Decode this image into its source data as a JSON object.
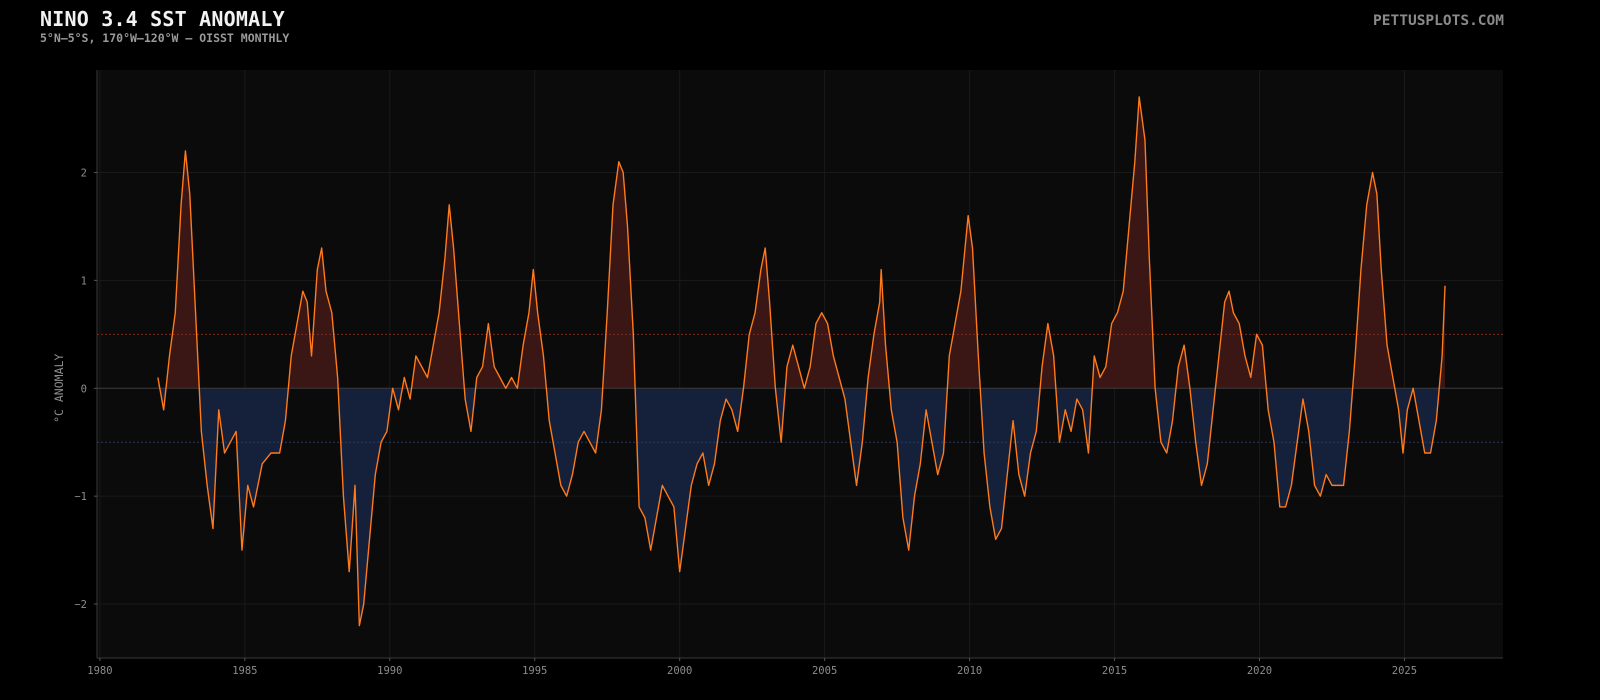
{
  "header": {
    "title": "NINO 3.4 SST ANOMALY",
    "subtitle": "5°N–5°S, 170°W–120°W — OISST MONTHLY",
    "brand": "PETTUSPLOTS.COM"
  },
  "colors": {
    "background": "#000000",
    "plot_background": "#0b0b0b",
    "line": "#ff7a1a",
    "warm_fill": "#3a1614",
    "cool_fill": "#15203a",
    "warm_threshold": "#7a2a22",
    "cool_threshold": "#2a3a60",
    "zero_line": "#3a3a3a",
    "grid": "#1a1a1a"
  },
  "chart_data": {
    "type": "area",
    "title": "NINO 3.4 SST ANOMALY",
    "subtitle": "5°N–5°S, 170°W–120°W — OISST MONTHLY",
    "xlabel": "",
    "ylabel": "°C ANOMALY",
    "xlim": [
      1979.9,
      2028.4
    ],
    "ylim": [
      -2.5,
      2.95
    ],
    "x_ticks": [
      1980,
      1985,
      1990,
      1995,
      2000,
      2005,
      2010,
      2015,
      2020,
      2025
    ],
    "x_tick_labels": [
      "1980",
      "1985",
      "1990",
      "1995",
      "2000",
      "2005",
      "2010",
      "2015",
      "2020",
      "2025"
    ],
    "y_ticks": [
      -2,
      -1,
      0,
      1,
      2
    ],
    "y_tick_labels": [
      "−2",
      "−1",
      "0",
      "1",
      "2"
    ],
    "thresholds": [
      0.5,
      -0.5
    ],
    "grid": true,
    "legend": "none",
    "series": [
      {
        "points": [
          [
            1982.0,
            0.1
          ],
          [
            1982.2,
            -0.2
          ],
          [
            1982.4,
            0.3
          ],
          [
            1982.6,
            0.7
          ],
          [
            1982.8,
            1.7
          ],
          [
            1982.95,
            2.2
          ],
          [
            1983.1,
            1.8
          ],
          [
            1983.3,
            0.7
          ],
          [
            1983.5,
            -0.4
          ],
          [
            1983.7,
            -0.9
          ],
          [
            1983.9,
            -1.3
          ],
          [
            1984.1,
            -0.2
          ],
          [
            1984.3,
            -0.6
          ],
          [
            1984.5,
            -0.5
          ],
          [
            1984.7,
            -0.4
          ],
          [
            1984.9,
            -1.5
          ],
          [
            1985.1,
            -0.9
          ],
          [
            1985.3,
            -1.1
          ],
          [
            1985.6,
            -0.7
          ],
          [
            1985.9,
            -0.6
          ],
          [
            1986.2,
            -0.6
          ],
          [
            1986.4,
            -0.3
          ],
          [
            1986.6,
            0.3
          ],
          [
            1986.8,
            0.6
          ],
          [
            1987.0,
            0.9
          ],
          [
            1987.15,
            0.8
          ],
          [
            1987.3,
            0.3
          ],
          [
            1987.5,
            1.1
          ],
          [
            1987.65,
            1.3
          ],
          [
            1987.8,
            0.9
          ],
          [
            1988.0,
            0.7
          ],
          [
            1988.2,
            0.1
          ],
          [
            1988.4,
            -1.0
          ],
          [
            1988.6,
            -1.7
          ],
          [
            1988.8,
            -0.9
          ],
          [
            1988.95,
            -2.2
          ],
          [
            1989.1,
            -2.0
          ],
          [
            1989.3,
            -1.4
          ],
          [
            1989.5,
            -0.8
          ],
          [
            1989.7,
            -0.5
          ],
          [
            1989.9,
            -0.4
          ],
          [
            1990.1,
            0.0
          ],
          [
            1990.3,
            -0.2
          ],
          [
            1990.5,
            0.1
          ],
          [
            1990.7,
            -0.1
          ],
          [
            1990.9,
            0.3
          ],
          [
            1991.1,
            0.2
          ],
          [
            1991.3,
            0.1
          ],
          [
            1991.5,
            0.4
          ],
          [
            1991.7,
            0.7
          ],
          [
            1991.9,
            1.2
          ],
          [
            1992.05,
            1.7
          ],
          [
            1992.2,
            1.3
          ],
          [
            1992.4,
            0.6
          ],
          [
            1992.6,
            -0.1
          ],
          [
            1992.8,
            -0.4
          ],
          [
            1993.0,
            0.1
          ],
          [
            1993.2,
            0.2
          ],
          [
            1993.4,
            0.6
          ],
          [
            1993.6,
            0.2
          ],
          [
            1993.8,
            0.1
          ],
          [
            1994.0,
            0.0
          ],
          [
            1994.2,
            0.1
          ],
          [
            1994.4,
            0.0
          ],
          [
            1994.6,
            0.4
          ],
          [
            1994.8,
            0.7
          ],
          [
            1994.95,
            1.1
          ],
          [
            1995.1,
            0.7
          ],
          [
            1995.3,
            0.3
          ],
          [
            1995.5,
            -0.3
          ],
          [
            1995.7,
            -0.6
          ],
          [
            1995.9,
            -0.9
          ],
          [
            1996.1,
            -1.0
          ],
          [
            1996.3,
            -0.8
          ],
          [
            1996.5,
            -0.5
          ],
          [
            1996.7,
            -0.4
          ],
          [
            1996.9,
            -0.5
          ],
          [
            1997.1,
            -0.6
          ],
          [
            1997.3,
            -0.2
          ],
          [
            1997.5,
            0.7
          ],
          [
            1997.7,
            1.7
          ],
          [
            1997.9,
            2.1
          ],
          [
            1998.05,
            2.0
          ],
          [
            1998.2,
            1.5
          ],
          [
            1998.4,
            0.5
          ],
          [
            1998.6,
            -1.1
          ],
          [
            1998.8,
            -1.2
          ],
          [
            1999.0,
            -1.5
          ],
          [
            1999.2,
            -1.2
          ],
          [
            1999.4,
            -0.9
          ],
          [
            1999.6,
            -1.0
          ],
          [
            1999.8,
            -1.1
          ],
          [
            2000.0,
            -1.7
          ],
          [
            2000.2,
            -1.3
          ],
          [
            2000.4,
            -0.9
          ],
          [
            2000.6,
            -0.7
          ],
          [
            2000.8,
            -0.6
          ],
          [
            2001.0,
            -0.9
          ],
          [
            2001.2,
            -0.7
          ],
          [
            2001.4,
            -0.3
          ],
          [
            2001.6,
            -0.1
          ],
          [
            2001.8,
            -0.2
          ],
          [
            2002.0,
            -0.4
          ],
          [
            2002.2,
            0.0
          ],
          [
            2002.4,
            0.5
          ],
          [
            2002.6,
            0.7
          ],
          [
            2002.8,
            1.1
          ],
          [
            2002.95,
            1.3
          ],
          [
            2003.1,
            0.8
          ],
          [
            2003.3,
            0.0
          ],
          [
            2003.5,
            -0.5
          ],
          [
            2003.7,
            0.2
          ],
          [
            2003.9,
            0.4
          ],
          [
            2004.1,
            0.2
          ],
          [
            2004.3,
            0.0
          ],
          [
            2004.5,
            0.2
          ],
          [
            2004.7,
            0.6
          ],
          [
            2004.9,
            0.7
          ],
          [
            2005.1,
            0.6
          ],
          [
            2005.3,
            0.3
          ],
          [
            2005.5,
            0.1
          ],
          [
            2005.7,
            -0.1
          ],
          [
            2005.9,
            -0.5
          ],
          [
            2006.1,
            -0.9
          ],
          [
            2006.3,
            -0.5
          ],
          [
            2006.5,
            0.1
          ],
          [
            2006.7,
            0.5
          ],
          [
            2006.9,
            0.8
          ],
          [
            2006.95,
            1.1
          ],
          [
            2007.1,
            0.4
          ],
          [
            2007.3,
            -0.2
          ],
          [
            2007.5,
            -0.5
          ],
          [
            2007.7,
            -1.2
          ],
          [
            2007.9,
            -1.5
          ],
          [
            2008.1,
            -1.0
          ],
          [
            2008.3,
            -0.7
          ],
          [
            2008.5,
            -0.2
          ],
          [
            2008.7,
            -0.5
          ],
          [
            2008.9,
            -0.8
          ],
          [
            2009.1,
            -0.6
          ],
          [
            2009.3,
            0.3
          ],
          [
            2009.5,
            0.6
          ],
          [
            2009.7,
            0.9
          ],
          [
            2009.95,
            1.6
          ],
          [
            2010.1,
            1.3
          ],
          [
            2010.3,
            0.3
          ],
          [
            2010.5,
            -0.6
          ],
          [
            2010.7,
            -1.1
          ],
          [
            2010.9,
            -1.4
          ],
          [
            2011.1,
            -1.3
          ],
          [
            2011.3,
            -0.8
          ],
          [
            2011.5,
            -0.3
          ],
          [
            2011.7,
            -0.8
          ],
          [
            2011.9,
            -1.0
          ],
          [
            2012.1,
            -0.6
          ],
          [
            2012.3,
            -0.4
          ],
          [
            2012.5,
            0.2
          ],
          [
            2012.7,
            0.6
          ],
          [
            2012.9,
            0.3
          ],
          [
            2013.1,
            -0.5
          ],
          [
            2013.3,
            -0.2
          ],
          [
            2013.5,
            -0.4
          ],
          [
            2013.7,
            -0.1
          ],
          [
            2013.9,
            -0.2
          ],
          [
            2014.1,
            -0.6
          ],
          [
            2014.3,
            0.3
          ],
          [
            2014.5,
            0.1
          ],
          [
            2014.7,
            0.2
          ],
          [
            2014.9,
            0.6
          ],
          [
            2015.1,
            0.7
          ],
          [
            2015.3,
            0.9
          ],
          [
            2015.5,
            1.5
          ],
          [
            2015.7,
            2.1
          ],
          [
            2015.85,
            2.7
          ],
          [
            2016.05,
            2.3
          ],
          [
            2016.2,
            1.2
          ],
          [
            2016.4,
            0.0
          ],
          [
            2016.6,
            -0.5
          ],
          [
            2016.8,
            -0.6
          ],
          [
            2017.0,
            -0.3
          ],
          [
            2017.2,
            0.2
          ],
          [
            2017.4,
            0.4
          ],
          [
            2017.6,
            0.0
          ],
          [
            2017.8,
            -0.5
          ],
          [
            2018.0,
            -0.9
          ],
          [
            2018.2,
            -0.7
          ],
          [
            2018.4,
            -0.2
          ],
          [
            2018.6,
            0.3
          ],
          [
            2018.8,
            0.8
          ],
          [
            2018.95,
            0.9
          ],
          [
            2019.1,
            0.7
          ],
          [
            2019.3,
            0.6
          ],
          [
            2019.5,
            0.3
          ],
          [
            2019.7,
            0.1
          ],
          [
            2019.9,
            0.5
          ],
          [
            2020.1,
            0.4
          ],
          [
            2020.3,
            -0.2
          ],
          [
            2020.5,
            -0.5
          ],
          [
            2020.7,
            -1.1
          ],
          [
            2020.9,
            -1.1
          ],
          [
            2021.1,
            -0.9
          ],
          [
            2021.3,
            -0.5
          ],
          [
            2021.5,
            -0.1
          ],
          [
            2021.7,
            -0.4
          ],
          [
            2021.9,
            -0.9
          ],
          [
            2022.1,
            -1.0
          ],
          [
            2022.3,
            -0.8
          ],
          [
            2022.5,
            -0.9
          ],
          [
            2022.7,
            -0.9
          ],
          [
            2022.9,
            -0.9
          ],
          [
            2023.1,
            -0.4
          ],
          [
            2023.3,
            0.3
          ],
          [
            2023.5,
            1.1
          ],
          [
            2023.7,
            1.7
          ],
          [
            2023.9,
            2.0
          ],
          [
            2024.05,
            1.8
          ],
          [
            2024.2,
            1.1
          ],
          [
            2024.4,
            0.4
          ],
          [
            2024.6,
            0.1
          ],
          [
            2024.8,
            -0.2
          ],
          [
            2024.95,
            -0.6
          ],
          [
            2025.1,
            -0.2
          ],
          [
            2025.3,
            0.0
          ],
          [
            2025.5,
            -0.3
          ],
          [
            2025.7,
            -0.6
          ],
          [
            2025.9,
            -0.6
          ],
          [
            2026.1,
            -0.3
          ],
          [
            2026.3,
            0.3
          ],
          [
            2026.4,
            0.95
          ]
        ]
      }
    ]
  }
}
